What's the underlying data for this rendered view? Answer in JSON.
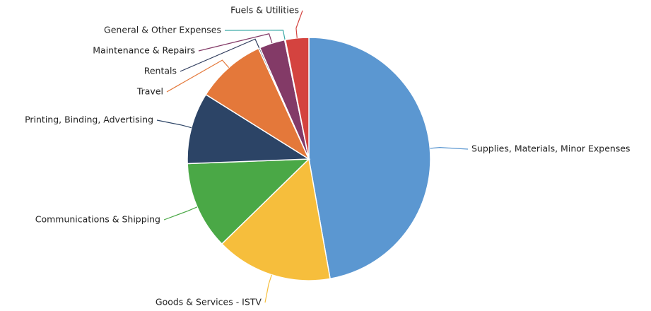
{
  "chart_data": {
    "type": "pie",
    "categories": [
      "Supplies, Materials, Minor Expenses",
      "Goods & Services - ISTV",
      "Communications & Shipping",
      "Printing, Binding, Advertising",
      "Travel",
      "Rentals",
      "Maintenance & Repairs",
      "General & Other Expenses",
      "Fuels & Utilities"
    ],
    "values": [
      47.2,
      15.5,
      11.7,
      9.5,
      9.3,
      0.2,
      3.4,
      0.1,
      3.1
    ],
    "colors": [
      "#5b97d1",
      "#f6be3c",
      "#4aa846",
      "#2c4466",
      "#e4783a",
      "#2e3b5c",
      "#833a67",
      "#3aa9a6",
      "#d4433f"
    ]
  }
}
